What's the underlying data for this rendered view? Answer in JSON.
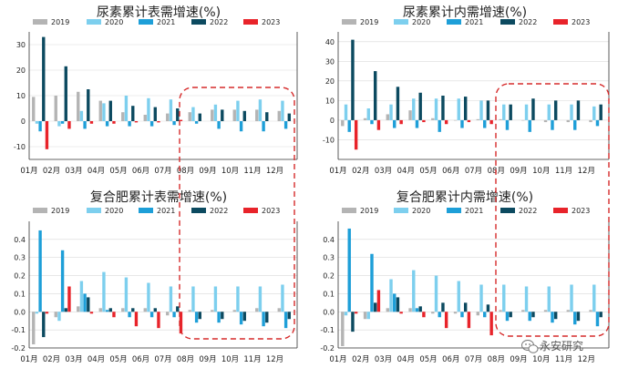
{
  "colors": {
    "2019": "#b4b4b4",
    "2020": "#7dcfee",
    "2021": "#1e9fd8",
    "2022": "#0c4a60",
    "2023": "#e8232a",
    "highlight": "#d62b2b"
  },
  "watermark": "永安研究",
  "watermark_icon": "wechat-icon",
  "chart_data": [
    {
      "type": "bar",
      "title": "尿素累计表需增速(%)",
      "categories": [
        "01月",
        "02月",
        "03月",
        "04月",
        "05月",
        "06月",
        "07月",
        "08月",
        "09月",
        "10月",
        "11月",
        "12月"
      ],
      "ylim": [
        -15,
        35
      ],
      "yticks": [
        -10,
        0,
        10,
        20,
        30
      ],
      "tick_labels": [
        "-10",
        "0",
        "10",
        "20",
        "30"
      ],
      "grid": true,
      "legend": "top",
      "series": [
        {
          "name": "2019",
          "values": [
            9.5,
            10,
            11.5,
            8,
            3.5,
            2.5,
            3,
            3.5,
            4.5,
            4.5,
            4.5,
            4
          ]
        },
        {
          "name": "2020",
          "values": [
            -1,
            -2,
            4,
            7,
            10,
            9,
            8.5,
            5.5,
            6.5,
            8,
            8.5,
            8
          ]
        },
        {
          "name": "2021",
          "values": [
            -4,
            -1,
            -3,
            -2,
            -2,
            -2,
            -1.5,
            -1,
            -3,
            -4,
            -4,
            -3
          ]
        },
        {
          "name": "2022",
          "values": [
            33,
            21.5,
            12.5,
            8,
            6,
            5.5,
            5,
            3,
            4.5,
            4,
            3.5,
            3
          ]
        },
        {
          "name": "2023",
          "values": [
            -11,
            -3,
            -1,
            -1,
            -0.5,
            -0.5,
            0.5,
            null,
            null,
            null,
            null,
            null
          ]
        }
      ],
      "highlight": {
        "from": "08月",
        "to": "12月"
      }
    },
    {
      "type": "bar",
      "title": "尿素累计内需增速(%)",
      "categories": [
        "01月",
        "02月",
        "03月",
        "04月",
        "05月",
        "06月",
        "07月",
        "08月",
        "09月",
        "10月",
        "11月",
        "12月"
      ],
      "ylim": [
        -20,
        45
      ],
      "yticks": [
        -10,
        0,
        10,
        20,
        30,
        40
      ],
      "tick_labels": [
        "-10",
        "0",
        "10",
        "20",
        "30",
        "40"
      ],
      "grid": true,
      "legend": "top",
      "series": [
        {
          "name": "2019",
          "values": [
            -3,
            1,
            3,
            5,
            1,
            0,
            0.5,
            0.5,
            0,
            -1,
            -1,
            -1
          ]
        },
        {
          "name": "2020",
          "values": [
            8,
            6,
            8,
            11,
            11,
            11,
            10,
            8,
            8,
            8,
            8,
            7
          ]
        },
        {
          "name": "2021",
          "values": [
            -6,
            -2,
            -4,
            -4,
            -6,
            -4,
            -4,
            -5,
            -6,
            -5,
            -5,
            -3
          ]
        },
        {
          "name": "2022",
          "values": [
            41,
            25,
            17,
            14,
            12.5,
            12,
            10,
            8,
            11,
            10,
            10,
            8
          ]
        },
        {
          "name": "2023",
          "values": [
            -15,
            -5,
            -2,
            -1,
            -2,
            -1,
            -2,
            null,
            null,
            null,
            null,
            null
          ]
        }
      ],
      "highlight": {
        "from": "08月",
        "to": "12月"
      }
    },
    {
      "type": "bar",
      "title": "复合肥累计表需增速(%)",
      "categories": [
        "01月",
        "02月",
        "03月",
        "04月",
        "05月",
        "06月",
        "07月",
        "08月",
        "09月",
        "10月",
        "11月",
        "12月"
      ],
      "ylim": [
        -0.2,
        0.5
      ],
      "yticks": [
        -0.2,
        -0.1,
        0,
        0.1,
        0.2,
        0.3,
        0.4
      ],
      "tick_labels": [
        "-0.2",
        "-0.1",
        "0.0",
        "0.1",
        "0.2",
        "0.3",
        "0.4"
      ],
      "grid": true,
      "legend": "top",
      "series": [
        {
          "name": "2019",
          "values": [
            -0.18,
            -0.03,
            0.03,
            0.02,
            0.02,
            0.02,
            -0.02,
            0.01,
            0.01,
            0.01,
            0.02,
            0.02
          ]
        },
        {
          "name": "2020",
          "values": [
            -0.01,
            -0.05,
            0.17,
            0.22,
            0.19,
            0.16,
            0.14,
            0.14,
            0.14,
            0.14,
            0.14,
            0.15
          ]
        },
        {
          "name": "2021",
          "values": [
            0.45,
            0.34,
            0.1,
            0.01,
            -0.03,
            -0.03,
            -0.03,
            -0.06,
            -0.06,
            -0.07,
            -0.08,
            -0.09
          ]
        },
        {
          "name": "2022",
          "values": [
            -0.14,
            0.02,
            0.08,
            0.02,
            0.02,
            0.02,
            0.03,
            -0.04,
            -0.04,
            -0.05,
            -0.06,
            -0.04
          ]
        },
        {
          "name": "2023",
          "values": [
            -0.01,
            0.14,
            -0.01,
            -0.03,
            -0.08,
            -0.09,
            -0.12,
            null,
            null,
            null,
            null,
            null
          ]
        }
      ],
      "highlight": {
        "from": "08月",
        "to": "12月"
      }
    },
    {
      "type": "bar",
      "title": "复合肥累计内需增速(%)",
      "categories": [
        "01月",
        "02月",
        "03月",
        "04月",
        "05月",
        "06月",
        "07月",
        "08月",
        "09月",
        "10月",
        "11月",
        "12月"
      ],
      "ylim": [
        -0.2,
        0.5
      ],
      "yticks": [
        -0.2,
        -0.1,
        0,
        0.1,
        0.2,
        0.3,
        0.4
      ],
      "tick_labels": [
        "-0.2",
        "-0.1",
        "0.0",
        "0.1",
        "0.2",
        "0.3",
        "0.4"
      ],
      "grid": true,
      "legend": "top",
      "series": [
        {
          "name": "2019",
          "values": [
            -0.19,
            -0.04,
            0.02,
            0.02,
            -0.01,
            -0.01,
            -0.02,
            0.01,
            0.01,
            0.01,
            0.01,
            0.01
          ]
        },
        {
          "name": "2020",
          "values": [
            -0.02,
            -0.04,
            0.18,
            0.23,
            0.2,
            0.17,
            0.15,
            0.15,
            0.14,
            0.14,
            0.15,
            0.15
          ]
        },
        {
          "name": "2021",
          "values": [
            0.46,
            0.32,
            0.1,
            0.02,
            -0.03,
            -0.03,
            -0.03,
            -0.05,
            -0.05,
            -0.06,
            -0.07,
            -0.08
          ]
        },
        {
          "name": "2022",
          "values": [
            -0.11,
            0.05,
            0.08,
            0.03,
            0.05,
            0.05,
            0.04,
            -0.03,
            -0.03,
            -0.04,
            -0.05,
            -0.03
          ]
        },
        {
          "name": "2023",
          "values": [
            -0.01,
            0.12,
            -0.01,
            -0.03,
            -0.09,
            -0.09,
            -0.13,
            null,
            null,
            null,
            null,
            null
          ]
        }
      ],
      "highlight": {
        "from": "08月",
        "to": "12月"
      }
    }
  ]
}
